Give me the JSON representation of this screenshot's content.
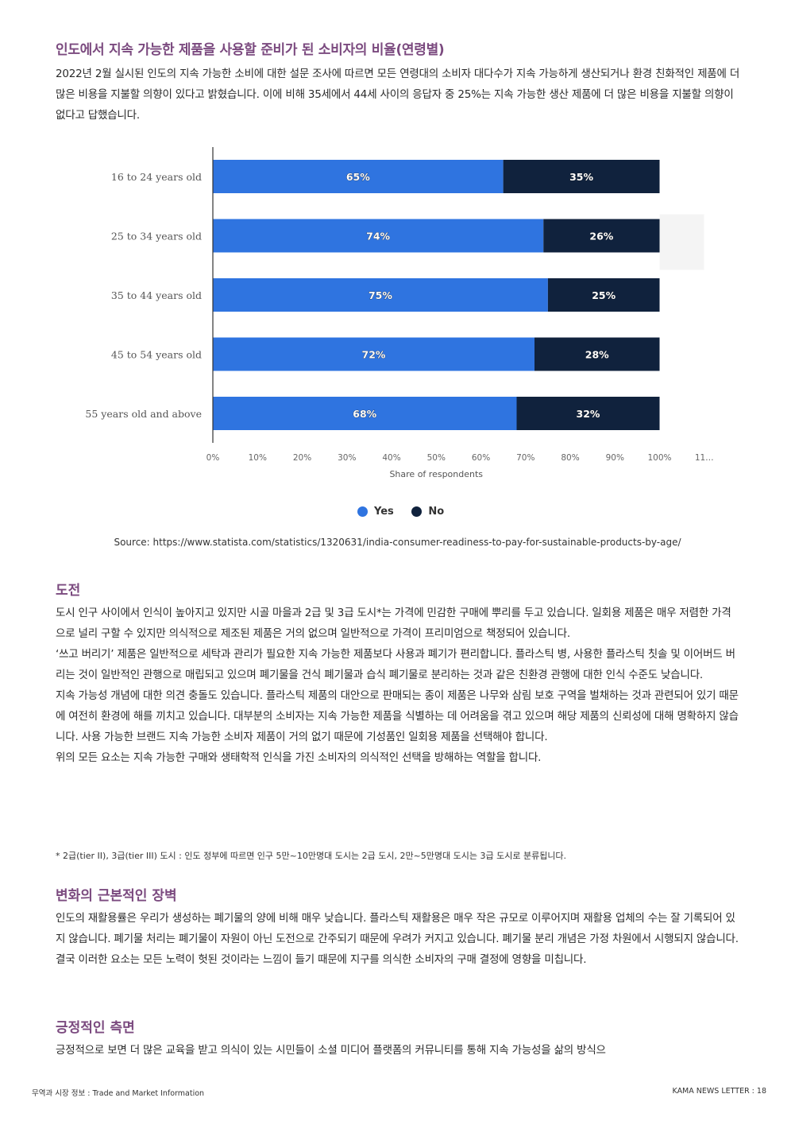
{
  "title": "인도에서 지속 가능한 제품을 사용할 준비가 된 소비자의 비율(연령별)",
  "intro": "2022년 2월 실시된 인도의 지속 가능한 소비에 대한 설문 조사에 따르면 모든 연령대의 소비자 대다수가 지속 가능하게 생산되거나 환경 친화적인 제품에 더 많은 비용을 지불할 의향이 있다고 밝혔습니다. 이에 비해 35세에서 44세 사이의 응답자 중 25%는 지속 가능한 생산 제품에 더 많은 비용을 지불할 의향이 없다고 답했습니다.",
  "chart_data": {
    "type": "bar",
    "orientation": "horizontal",
    "stacked": true,
    "categories": [
      "16 to 24 years old",
      "25 to 34 years old",
      "35 to 44 years old",
      "45 to 54 years old",
      "55 years old and above"
    ],
    "series": [
      {
        "name": "Yes",
        "values": [
          65,
          74,
          75,
          72,
          68
        ],
        "labels": [
          "65%",
          "74%",
          "75%",
          "72%",
          "68%"
        ],
        "color": "#2f74e0"
      },
      {
        "name": "No",
        "values": [
          35,
          26,
          25,
          28,
          32
        ],
        "labels": [
          "35%",
          "26%",
          "25%",
          "28%",
          "32%"
        ],
        "color": "#10223d"
      }
    ],
    "xticks": [
      "0%",
      "10%",
      "20%",
      "30%",
      "40%",
      "50%",
      "60%",
      "70%",
      "80%",
      "90%",
      "100%",
      "11…"
    ],
    "xlabel": "Share of respondents",
    "xlim": [
      0,
      110
    ],
    "legend": "bottom-center"
  },
  "source": "Source: https://www.statista.com/statistics/1320631/india-consumer-readiness-to-pay-for-sustainable-products-by-age/",
  "section1": {
    "title": "도전",
    "p1": "도시 인구 사이에서 인식이 높아지고 있지만 시골 마을과 2급 및 3급 도시*는 가격에 민감한 구매에 뿌리를 두고 있습니다. 일회용 제품은 매우 저렴한 가격으로 널리 구할 수 있지만 의식적으로 제조된 제품은 거의 없으며 일반적으로 가격이 프리미엄으로 책정되어 있습니다.",
    "p2": "‘쓰고 버리기’ 제품은 일반적으로 세탁과 관리가 필요한 지속 가능한 제품보다 사용과 폐기가 편리합니다. 플라스틱 병, 사용한 플라스틱 칫솔 및 이어버드 버리는 것이 일반적인 관행으로 매립되고 있으며 폐기물을 건식 폐기물과 습식 폐기물로 분리하는 것과 같은 친환경 관행에 대한 인식 수준도 낮습니다.",
    "p3": "지속 가능성 개념에 대한 의견 충돌도 있습니다. 플라스틱 제품의 대안으로 판매되는 종이 제품은 나무와 삼림 보호 구역을 벌채하는 것과 관련되어 있기 때문에 여전히 환경에 해를 끼치고 있습니다. 대부분의 소비자는 지속 가능한 제품을 식별하는 데 어려움을 겪고 있으며 해당 제품의 신뢰성에 대해 명확하지 않습니다. 사용 가능한 브랜드 지속 가능한 소비자 제품이 거의 없기 때문에 기성품인 일회용 제품을 선택해야 합니다.",
    "p4": "위의 모든 요소는 지속 가능한 구매와 생태학적 인식을 가진 소비자의 의식적인 선택을 방해하는 역할을 합니다."
  },
  "footnote": "* 2급(tier II), 3급(tier III) 도시 : 인도 정부에 따르면 인구 5만~10만명대 도시는 2급 도시, 2만~5만명대 도시는 3급 도시로 분류됩니다.",
  "section2": {
    "title": "변화의 근본적인 장벽",
    "p1": "인도의 재활용률은 우리가 생성하는 폐기물의 양에 비해 매우 낮습니다. 플라스틱 재활용은 매우 작은 규모로 이루어지며 재활용 업체의 수는 잘 기록되어 있지 않습니다. 폐기물 처리는 폐기물이 자원이 아닌 도전으로 간주되기 때문에 우려가 커지고 있습니다. 폐기물 분리 개념은 가정 차원에서 시행되지 않습니다. 결국 이러한 요소는 모든 노력이 헛된 것이라는 느낌이 들기 때문에 지구를 의식한 소비자의 구매 결정에 영향을 미칩니다."
  },
  "section3": {
    "title": "긍정적인 측면",
    "p1": "긍정적으로 보면 더 많은 교육을 받고 의식이 있는 시민들이 소셜 미디어 플랫폼의 커뮤니티를 통해 지속 가능성을 삶의 방식으"
  },
  "footer": {
    "left": "무역과 시장 정보 : Trade and Market Information",
    "right": "KAMA NEWS LETTER : 18"
  }
}
